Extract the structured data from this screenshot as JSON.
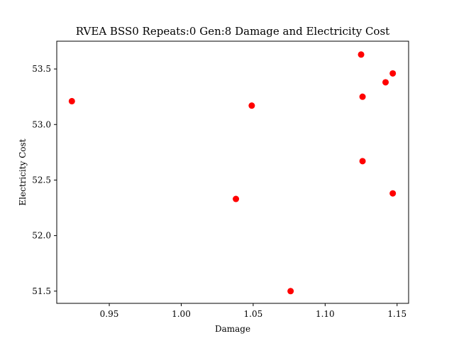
{
  "chart_data": {
    "type": "scatter",
    "title": "RVEA BSS0 Repeats:0 Gen:8 Damage and Electricity Cost",
    "xlabel": "Damage",
    "ylabel": "Electricity Cost",
    "xlim": [
      0.9135,
      1.158
    ],
    "ylim": [
      51.39,
      53.75
    ],
    "xticks": [
      0.95,
      1.0,
      1.05,
      1.1,
      1.15
    ],
    "xtick_labels": [
      "0.95",
      "1.00",
      "1.05",
      "1.10",
      "1.15"
    ],
    "yticks": [
      51.5,
      52.0,
      52.5,
      53.0,
      53.5
    ],
    "ytick_labels": [
      "51.5",
      "52.0",
      "52.5",
      "53.0",
      "53.5"
    ],
    "grid": false,
    "legend": "none",
    "marker_color": "#ff0000",
    "series": [
      {
        "x": [
          0.924,
          1.038,
          1.049,
          1.076,
          1.125,
          1.126,
          1.126,
          1.142,
          1.147,
          1.147
        ],
        "y": [
          53.21,
          52.33,
          53.17,
          51.5,
          53.63,
          53.25,
          52.67,
          53.38,
          53.46,
          52.38
        ]
      }
    ]
  }
}
